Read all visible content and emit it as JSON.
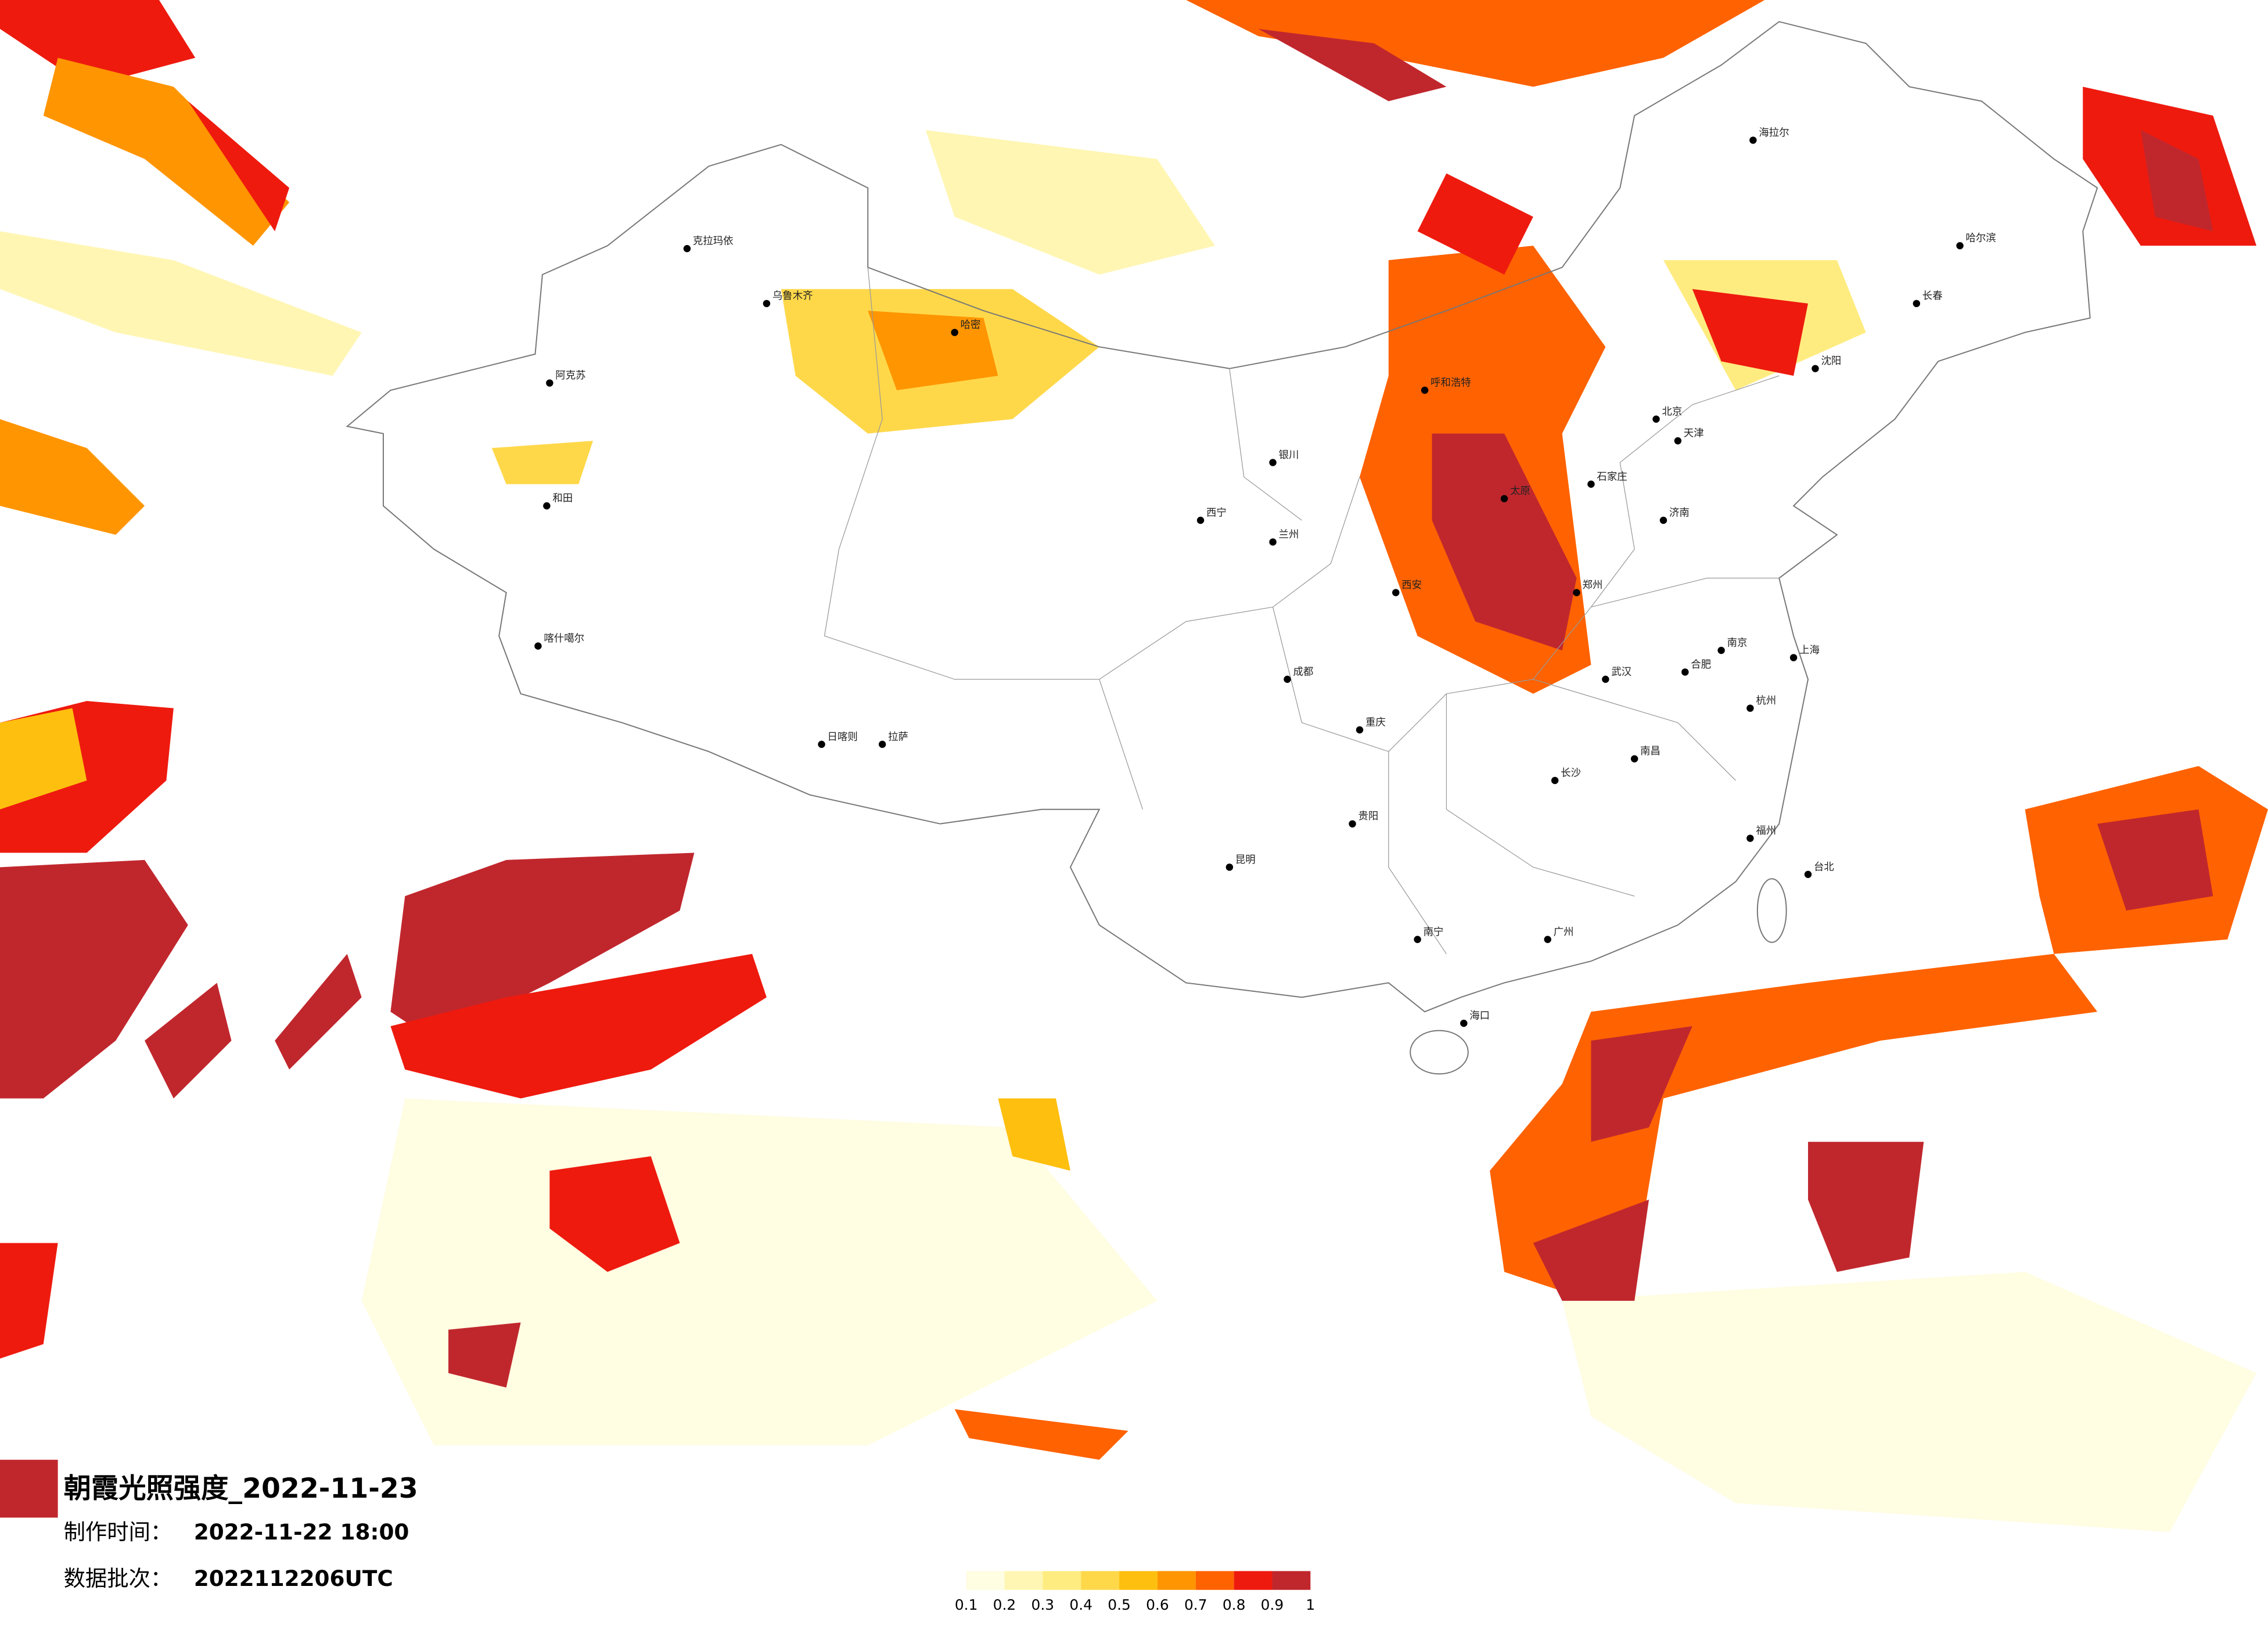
{
  "title": "朝霞光照强度_2022-11-23",
  "production": {
    "label": "制作时间：",
    "value": "2022-11-22 18:00"
  },
  "batch": {
    "label": "数据批次：",
    "value": "2022112206UTC"
  },
  "legend": {
    "ticks": [
      0.1,
      0.2,
      0.3,
      0.4,
      0.5,
      0.6,
      0.7,
      0.8,
      0.9,
      1
    ],
    "colors": [
      "#fffde2",
      "#fff6b4",
      "#ffec80",
      "#ffd84a",
      "#ffbf0f",
      "#ff9500",
      "#ff6200",
      "#ee1a0e",
      "#c0272d"
    ]
  },
  "cities": [
    "克拉玛依",
    "乌鲁木齐",
    "哈密",
    "阿克苏",
    "和田",
    "喀什噶尔",
    "日喀则",
    "拉萨",
    "西宁",
    "兰州",
    "银川",
    "呼和浩特",
    "北京",
    "天津",
    "石家庄",
    "太原",
    "济南",
    "郑州",
    "西安",
    "成都",
    "重庆",
    "武汉",
    "长沙",
    "南昌",
    "杭州",
    "上海",
    "南京",
    "合肥",
    "福州",
    "广州",
    "南宁",
    "贵阳",
    "昆明",
    "海口",
    "沈阳",
    "长春",
    "哈尔滨",
    "台北",
    "海拉尔"
  ]
}
